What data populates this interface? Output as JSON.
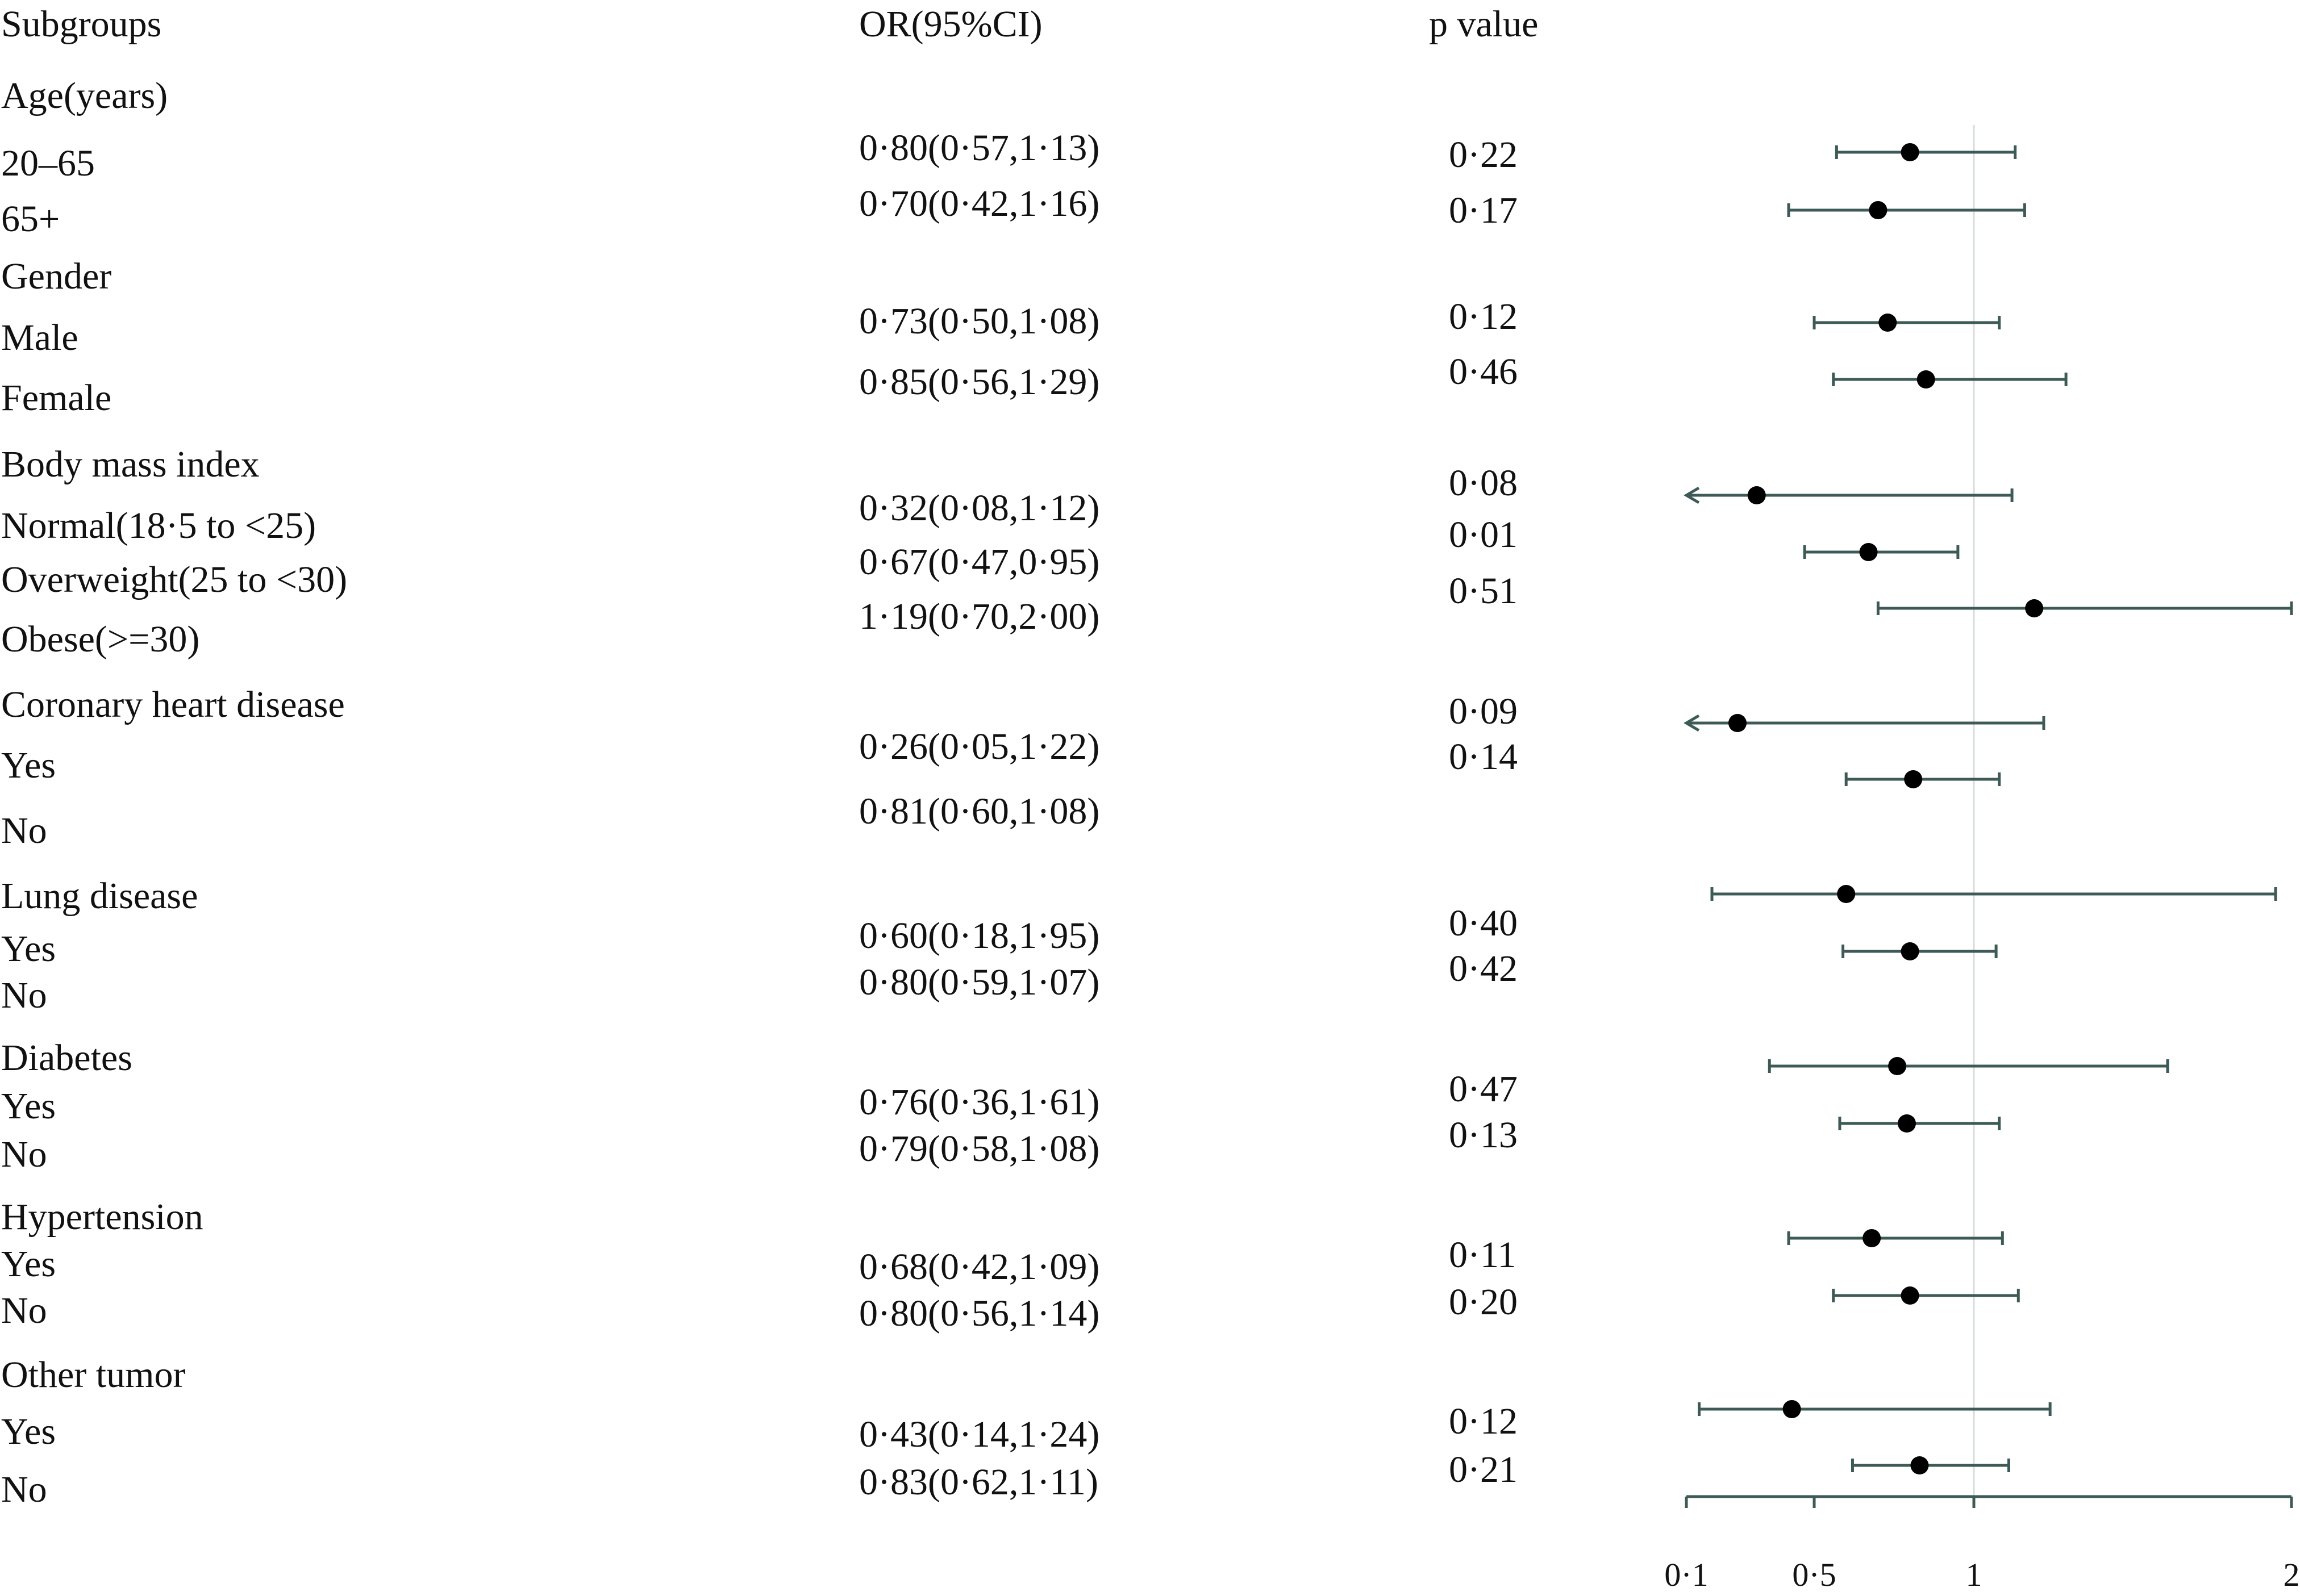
{
  "headers": {
    "subgroups": "Subgroups",
    "or_ci": "OR(95%CI)",
    "p_value": "p value"
  },
  "groups": [
    {
      "title": "Age(years)",
      "rows": [
        {
          "label": "20–65",
          "or": "0·80(0·57,1·13)",
          "p": "0·22"
        },
        {
          "label": "65+",
          "or": "0·70(0·42,1·16)",
          "p": "0·17"
        }
      ]
    },
    {
      "title": "Gender",
      "rows": [
        {
          "label": "Male",
          "or": "0·73(0·50,1·08)",
          "p": "0·12"
        },
        {
          "label": "Female",
          "or": "0·85(0·56,1·29)",
          "p": "0·46"
        }
      ]
    },
    {
      "title": "Body mass index",
      "rows": [
        {
          "label": "Normal(18·5 to <25)",
          "or": "0·32(0·08,1·12)",
          "p": "0·08"
        },
        {
          "label": "Overweight(25 to <30)",
          "or": "0·67(0·47,0·95)",
          "p": "0·01"
        },
        {
          "label": "Obese(>=30)",
          "or": "1·19(0·70,2·00)",
          "p": "0·51"
        }
      ]
    },
    {
      "title": "Coronary heart disease",
      "rows": [
        {
          "label": "Yes",
          "or": "0·26(0·05,1·22)",
          "p": "0·09"
        },
        {
          "label": "No",
          "or": "0·81(0·60,1·08)",
          "p": "0·14"
        }
      ]
    },
    {
      "title": "Lung disease",
      "rows": [
        {
          "label": "Yes",
          "or": "0·60(0·18,1·95)",
          "p": "0·40"
        },
        {
          "label": "No",
          "or": "0·80(0·59,1·07)",
          "p": "0·42"
        }
      ]
    },
    {
      "title": "Diabetes",
      "rows": [
        {
          "label": "Yes",
          "or": "0·76(0·36,1·61)",
          "p": "0·47"
        },
        {
          "label": "No",
          "or": "0·79(0·58,1·08)",
          "p": "0·13"
        }
      ]
    },
    {
      "title": "Hypertension",
      "rows": [
        {
          "label": "Yes",
          "or": "0·68(0·42,1·09)",
          "p": "0·11"
        },
        {
          "label": "No",
          "or": "0·80(0·56,1·14)",
          "p": "0·20"
        }
      ]
    },
    {
      "title": "Other tumor",
      "rows": [
        {
          "label": "Yes",
          "or": "0·43(0·14,1·24)",
          "p": "0·12"
        },
        {
          "label": "No",
          "or": "0·83(0·62,1·11)",
          "p": "0·21"
        }
      ]
    }
  ],
  "chart_data": {
    "type": "forest",
    "xlabel": "",
    "x_ticks": [
      0.1,
      0.5,
      1,
      2
    ],
    "x_tick_labels": [
      "0·1",
      "0·5",
      "1",
      "2"
    ],
    "reference_line": 1,
    "xlim": [
      0.1,
      2
    ],
    "series": [
      {
        "name": "Age 20–65",
        "or": 0.8,
        "lower": 0.57,
        "upper": 1.13
      },
      {
        "name": "Age 65+",
        "or": 0.7,
        "lower": 0.42,
        "upper": 1.16
      },
      {
        "name": "Gender Male",
        "or": 0.73,
        "lower": 0.5,
        "upper": 1.08
      },
      {
        "name": "Gender Female",
        "or": 0.85,
        "lower": 0.56,
        "upper": 1.29
      },
      {
        "name": "BMI Normal",
        "or": 0.32,
        "lower": 0.08,
        "upper": 1.12,
        "truncated_left": true
      },
      {
        "name": "BMI Overweight",
        "or": 0.67,
        "lower": 0.47,
        "upper": 0.95
      },
      {
        "name": "BMI Obese",
        "or": 1.19,
        "lower": 0.7,
        "upper": 2.0
      },
      {
        "name": "Coronary heart disease Yes",
        "or": 0.26,
        "lower": 0.05,
        "upper": 1.22,
        "truncated_left": true
      },
      {
        "name": "Coronary heart disease No",
        "or": 0.81,
        "lower": 0.6,
        "upper": 1.08
      },
      {
        "name": "Lung disease Yes",
        "or": 0.6,
        "lower": 0.18,
        "upper": 1.95
      },
      {
        "name": "Lung disease No",
        "or": 0.8,
        "lower": 0.59,
        "upper": 1.07
      },
      {
        "name": "Diabetes Yes",
        "or": 0.76,
        "lower": 0.36,
        "upper": 1.61
      },
      {
        "name": "Diabetes No",
        "or": 0.79,
        "lower": 0.58,
        "upper": 1.08
      },
      {
        "name": "Hypertension Yes",
        "or": 0.68,
        "lower": 0.42,
        "upper": 1.09
      },
      {
        "name": "Hypertension No",
        "or": 0.8,
        "lower": 0.56,
        "upper": 1.14
      },
      {
        "name": "Other tumor Yes",
        "or": 0.43,
        "lower": 0.14,
        "upper": 1.24
      },
      {
        "name": "Other tumor No",
        "or": 0.83,
        "lower": 0.62,
        "upper": 1.11
      }
    ]
  }
}
